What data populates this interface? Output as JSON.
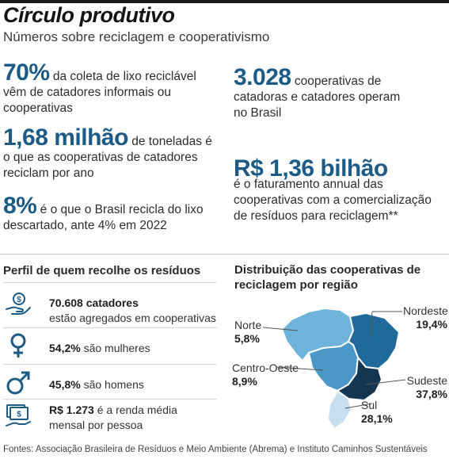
{
  "header": {
    "title": "Círculo produtivo",
    "subtitle": "Números sobre reciclagem e cooperativismo"
  },
  "stats": {
    "s1": {
      "value": "70%",
      "text_line1": "da coleta de lixo reciclável",
      "text_line2": "vêm de catadores informais ou",
      "text_line3": "cooperativas"
    },
    "s2": {
      "value": "1,68 milhão",
      "text_line1": "de toneladas é",
      "text_line2": "o que as cooperativas de catadores",
      "text_line3": "reciclam por ano"
    },
    "s3": {
      "value": "8%",
      "text_line1": "é o que o Brasil recicla do lixo",
      "text_line2": "descartado, ante 4% em 2022"
    },
    "s4": {
      "value": "3.028",
      "text_line1": "cooperativas de",
      "text_line2": "catadoras e catadores operam",
      "text_line3": "no Brasil"
    },
    "s5": {
      "value": "R$ 1,36 bilhão",
      "text_line1": "é o faturamento annual das",
      "text_line2": "cooperativas com a comercialização",
      "text_line3": "de resíduos para reciclagem**"
    }
  },
  "profile": {
    "title": "Perfil de quem recolhe os resíduos",
    "rows": [
      {
        "icon": "hand-coins-icon",
        "bold": "70.608 catadores",
        "line2": "estão agregados em cooperativas"
      },
      {
        "icon": "female-symbol-icon",
        "bold": "54,2%",
        "rest": "são mulheres"
      },
      {
        "icon": "male-symbol-icon",
        "bold": "45,8%",
        "rest": "são homens"
      },
      {
        "icon": "money-bill-icon",
        "bold": "R$ 1.273",
        "rest": "é a renda média",
        "line2": "mensal por pessoa"
      }
    ]
  },
  "map": {
    "title_line1": "Distribuição das cooperativas de",
    "title_line2": "reciclagem por região",
    "regions": [
      {
        "name": "Norte",
        "value": "5,8%",
        "share": 5.8,
        "color": "#6db3da"
      },
      {
        "name": "Nordeste",
        "value": "19,4%",
        "share": 19.4,
        "color": "#1f6a9a"
      },
      {
        "name": "Centro-Oeste",
        "value": "8,9%",
        "share": 8.9,
        "color": "#4b97c8"
      },
      {
        "name": "Sudeste",
        "value": "37,8%",
        "share": 37.8,
        "color": "#153650"
      },
      {
        "name": "Sul",
        "value": "28,1%",
        "share": 28.1,
        "color": "#c5def0"
      }
    ]
  },
  "footer": "Fontes: Associação Brasileira de Resíduos e Meio Ambiente (Abrema) e Instituto Caminhos Sustentáveis"
}
